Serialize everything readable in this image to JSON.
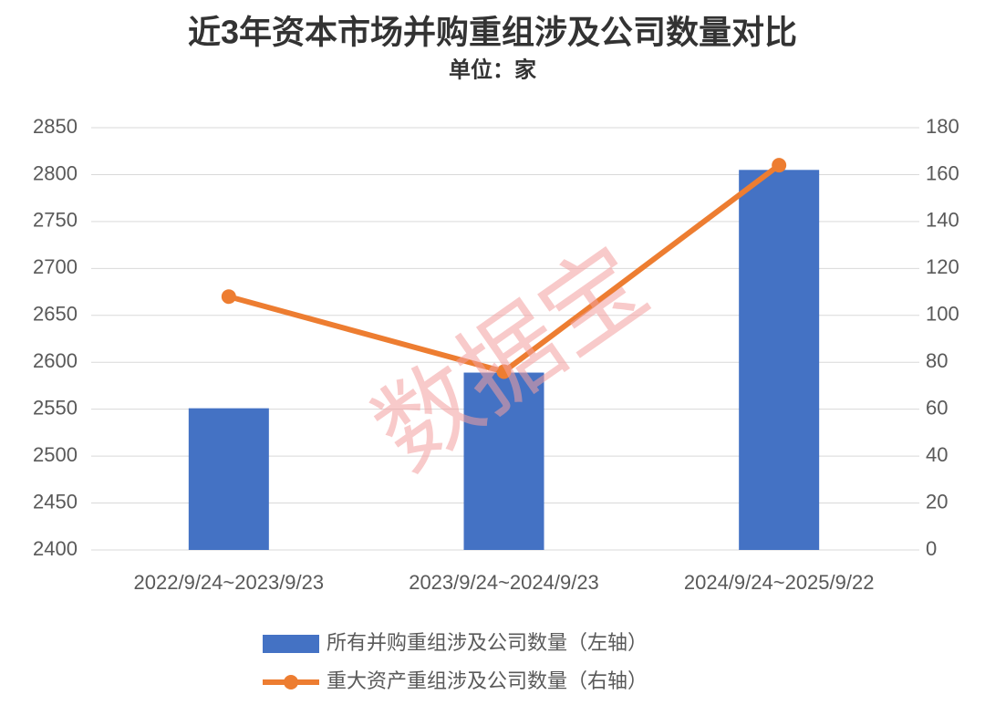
{
  "chart_data": {
    "type": "bar",
    "title": "近3年资本市场并购重组涉及公司数量对比",
    "subtitle": "单位：家",
    "watermark": "数据宝",
    "categories": [
      "2022/9/24~2023/9/23",
      "2023/9/24~2024/9/23",
      "2024/9/24~2025/9/22"
    ],
    "series": [
      {
        "name": "所有并购重组涉及公司数量（左轴）",
        "color": "#4472c4",
        "type": "bar",
        "values": [
          2551,
          2589,
          2805
        ]
      },
      {
        "name": "重大资产重组涉及公司数量（右轴）",
        "color": "#ed7d31",
        "type": "line",
        "axis": "y2",
        "values": [
          108,
          76,
          164
        ]
      }
    ],
    "ylim": [
      2400,
      2850
    ],
    "yticks": [
      2400,
      2450,
      2500,
      2550,
      2600,
      2650,
      2700,
      2750,
      2800,
      2850
    ],
    "y2lim": [
      0,
      180
    ],
    "y2ticks": [
      0,
      20,
      40,
      60,
      80,
      100,
      120,
      140,
      160,
      180
    ],
    "grid": true,
    "legend": "bottom"
  }
}
